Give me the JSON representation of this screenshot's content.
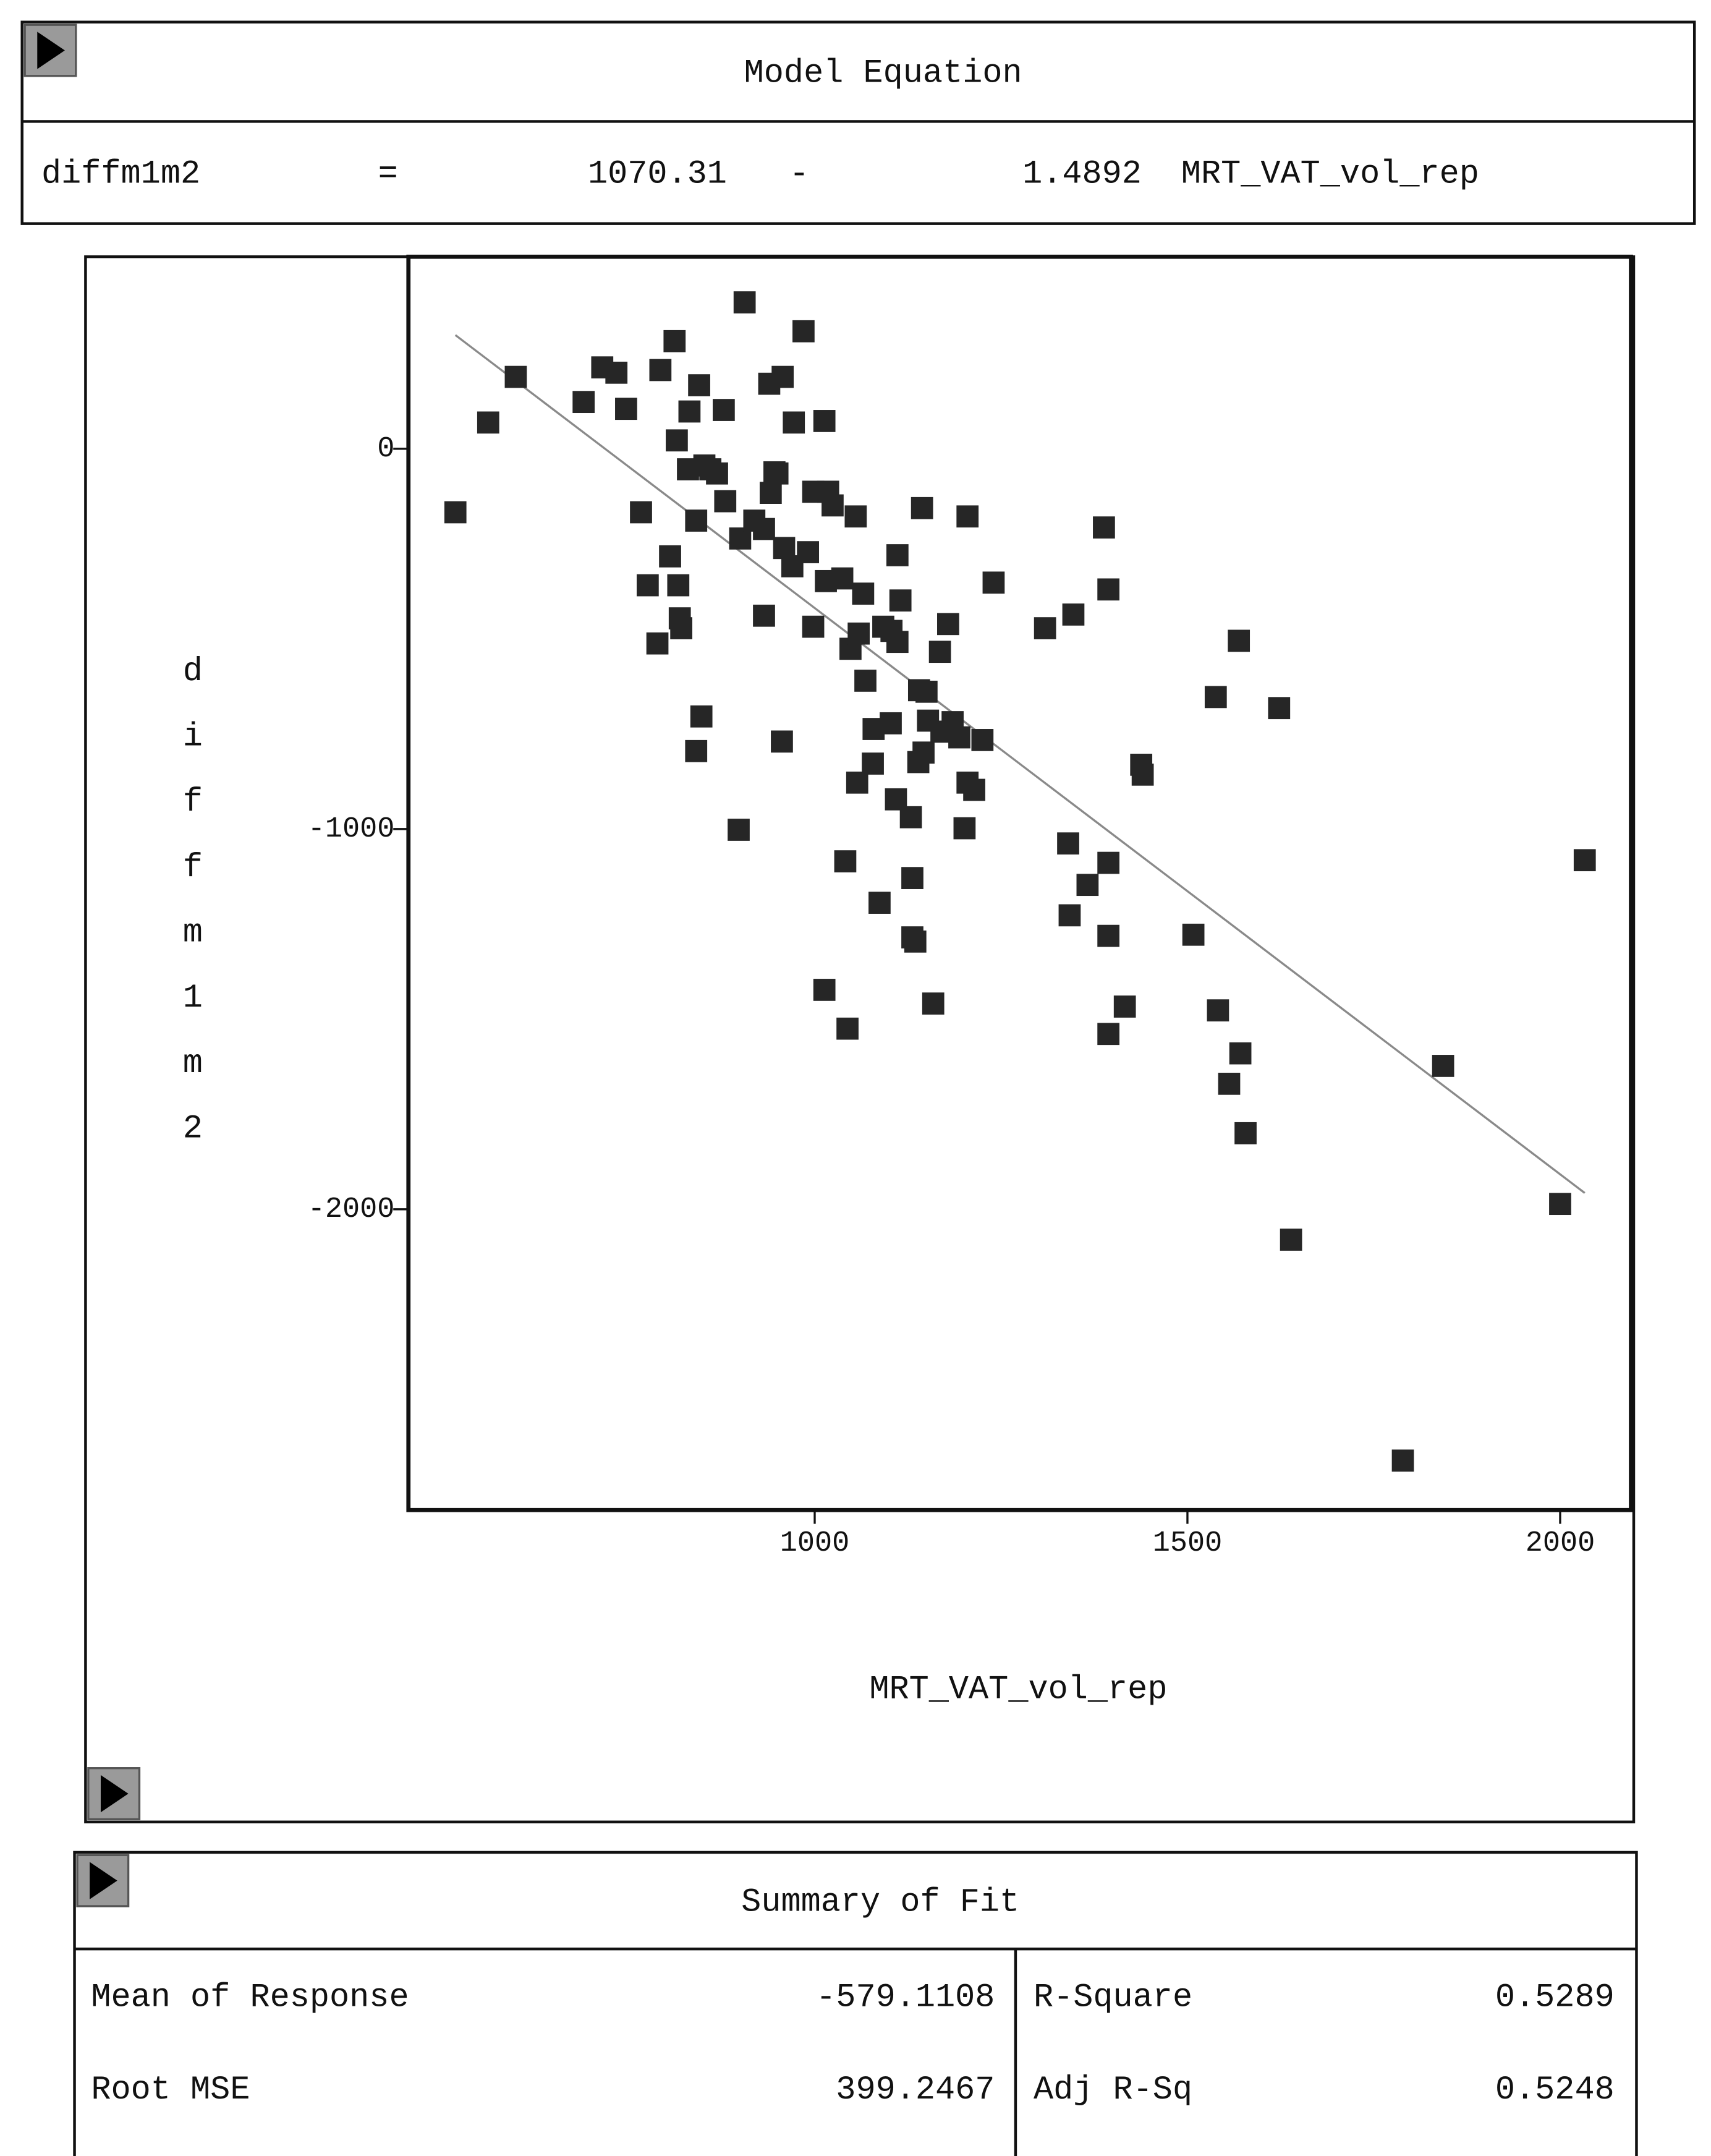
{
  "model_equation": {
    "title": "Model Equation",
    "response": "diffm1m2",
    "equals": "=",
    "intercept": 1070.31,
    "sign": "-",
    "slope": 1.4892,
    "term": "MRT_VAT_vol_rep"
  },
  "chart_data": {
    "type": "scatter",
    "x_label": "MRT_VAT_vol_rep",
    "y_label": "diffm1m2",
    "color": "#262626",
    "line_color": "#8a8a8a",
    "fit_line": true,
    "x": [
      518,
      562,
      599,
      690,
      715,
      734,
      747,
      767,
      776,
      789,
      793,
      806,
      812,
      815,
      817,
      819,
      821,
      830,
      832,
      841,
      841,
      845,
      848,
      852,
      860,
      869,
      878,
      880,
      900,
      898,
      906,
      919,
      932,
      932,
      939,
      941,
      946,
      950,
      956,
      957,
      959,
      970,
      972,
      985,
      991,
      998,
      998,
      1013,
      1013,
      1015,
      1018,
      1024,
      1037,
      1041,
      1044,
      1048,
      1055,
      1057,
      1059,
      1065,
      1068,
      1078,
      1079,
      1087,
      1092,
      1102,
      1103,
      1109,
      1111,
      1111,
      1115,
      1129,
      1131,
      1131,
      1135,
      1139,
      1140,
      1144,
      1146,
      1150,
      1152,
      1159,
      1168,
      1170,
      1179,
      1185,
      1194,
      1201,
      1205,
      1205,
      1214,
      1225,
      1240,
      1309,
      1340,
      1342,
      1347,
      1366,
      1388,
      1394,
      1394,
      1394,
      1394,
      1416,
      1438,
      1440,
      1508,
      1538,
      1541,
      1556,
      1569,
      1571,
      1578,
      1623,
      1639,
      1789,
      1843,
      2000,
      2033
    ],
    "values": [
      -167,
      69,
      189,
      123,
      214,
      200,
      105,
      -167,
      -359,
      -512,
      207,
      -283,
      283,
      22,
      -359,
      -446,
      -472,
      -54,
      98,
      -189,
      -795,
      167,
      -704,
      -44,
      -54,
      -65,
      102,
      -138,
      -236,
      -1002,
      385,
      -189,
      -439,
      -211,
      171,
      -116,
      -62,
      -65,
      -770,
      189,
      -261,
      -309,
      69,
      309,
      -272,
      -468,
      -113,
      73,
      -1423,
      -348,
      -113,
      -149,
      -341,
      -1085,
      -1525,
      -526,
      -178,
      -878,
      -486,
      -381,
      -610,
      -828,
      -737,
      -1194,
      -468,
      -722,
      -479,
      -922,
      -280,
      -508,
      -399,
      -969,
      -1129,
      -1285,
      -1296,
      -824,
      -635,
      -156,
      -799,
      -639,
      -715,
      -1459,
      -534,
      -744,
      -461,
      -719,
      -759,
      -998,
      -178,
      -878,
      -897,
      -766,
      -352,
      -472,
      -1038,
      -1227,
      -436,
      -1147,
      -207,
      -370,
      -1089,
      -1281,
      -1539,
      -1467,
      -831,
      -857,
      -1278,
      -653,
      -1477,
      -1670,
      -505,
      -1590,
      -1800,
      -682,
      -2080,
      -2661,
      -1623,
      -1986,
      -1082
    ],
    "xlim": [
      455,
      2095
    ],
    "ylim": [
      -2791,
      505
    ],
    "xticks": [
      1000,
      1500,
      2000
    ],
    "yticks": [
      0,
      -1000,
      -2000
    ],
    "grid": false
  },
  "summary_of_fit": {
    "title": "Summary of Fit",
    "rows": [
      [
        "Mean of Response",
        -579.1108,
        "R-Square",
        0.5289
      ],
      [
        "Root MSE",
        399.2467,
        "Adj R-Sq",
        0.5248
      ]
    ]
  }
}
